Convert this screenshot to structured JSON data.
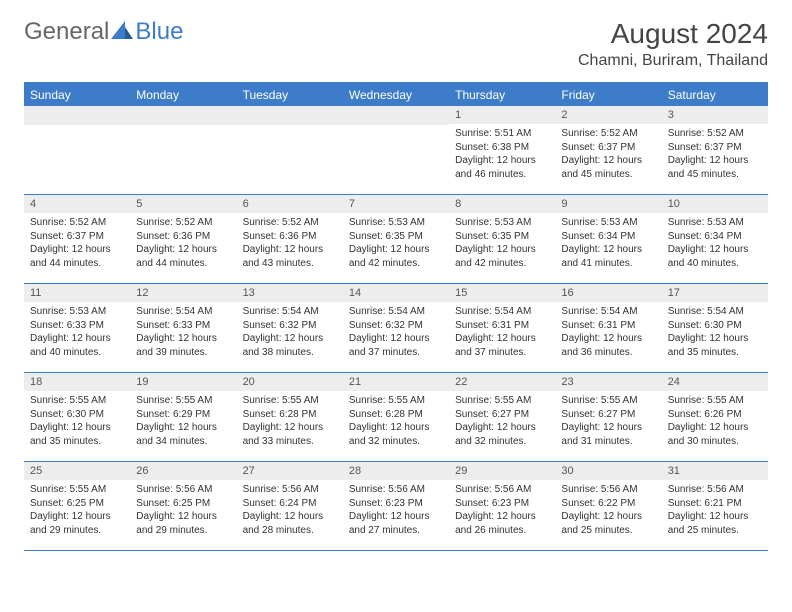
{
  "logo": {
    "part1": "General",
    "part2": "Blue"
  },
  "title": "August 2024",
  "location": "Chamni, Buriram, Thailand",
  "colors": {
    "header_bg": "#3d7cc9",
    "header_text": "#ffffff",
    "daynum_bg": "#ededed",
    "border": "#3d7cc9",
    "text": "#333333",
    "logo_gray": "#666666",
    "logo_blue": "#3d7cc9"
  },
  "day_names": [
    "Sunday",
    "Monday",
    "Tuesday",
    "Wednesday",
    "Thursday",
    "Friday",
    "Saturday"
  ],
  "weeks": [
    [
      {
        "n": "",
        "sr": "",
        "ss": "",
        "dl": ""
      },
      {
        "n": "",
        "sr": "",
        "ss": "",
        "dl": ""
      },
      {
        "n": "",
        "sr": "",
        "ss": "",
        "dl": ""
      },
      {
        "n": "",
        "sr": "",
        "ss": "",
        "dl": ""
      },
      {
        "n": "1",
        "sr": "Sunrise: 5:51 AM",
        "ss": "Sunset: 6:38 PM",
        "dl": "Daylight: 12 hours and 46 minutes."
      },
      {
        "n": "2",
        "sr": "Sunrise: 5:52 AM",
        "ss": "Sunset: 6:37 PM",
        "dl": "Daylight: 12 hours and 45 minutes."
      },
      {
        "n": "3",
        "sr": "Sunrise: 5:52 AM",
        "ss": "Sunset: 6:37 PM",
        "dl": "Daylight: 12 hours and 45 minutes."
      }
    ],
    [
      {
        "n": "4",
        "sr": "Sunrise: 5:52 AM",
        "ss": "Sunset: 6:37 PM",
        "dl": "Daylight: 12 hours and 44 minutes."
      },
      {
        "n": "5",
        "sr": "Sunrise: 5:52 AM",
        "ss": "Sunset: 6:36 PM",
        "dl": "Daylight: 12 hours and 44 minutes."
      },
      {
        "n": "6",
        "sr": "Sunrise: 5:52 AM",
        "ss": "Sunset: 6:36 PM",
        "dl": "Daylight: 12 hours and 43 minutes."
      },
      {
        "n": "7",
        "sr": "Sunrise: 5:53 AM",
        "ss": "Sunset: 6:35 PM",
        "dl": "Daylight: 12 hours and 42 minutes."
      },
      {
        "n": "8",
        "sr": "Sunrise: 5:53 AM",
        "ss": "Sunset: 6:35 PM",
        "dl": "Daylight: 12 hours and 42 minutes."
      },
      {
        "n": "9",
        "sr": "Sunrise: 5:53 AM",
        "ss": "Sunset: 6:34 PM",
        "dl": "Daylight: 12 hours and 41 minutes."
      },
      {
        "n": "10",
        "sr": "Sunrise: 5:53 AM",
        "ss": "Sunset: 6:34 PM",
        "dl": "Daylight: 12 hours and 40 minutes."
      }
    ],
    [
      {
        "n": "11",
        "sr": "Sunrise: 5:53 AM",
        "ss": "Sunset: 6:33 PM",
        "dl": "Daylight: 12 hours and 40 minutes."
      },
      {
        "n": "12",
        "sr": "Sunrise: 5:54 AM",
        "ss": "Sunset: 6:33 PM",
        "dl": "Daylight: 12 hours and 39 minutes."
      },
      {
        "n": "13",
        "sr": "Sunrise: 5:54 AM",
        "ss": "Sunset: 6:32 PM",
        "dl": "Daylight: 12 hours and 38 minutes."
      },
      {
        "n": "14",
        "sr": "Sunrise: 5:54 AM",
        "ss": "Sunset: 6:32 PM",
        "dl": "Daylight: 12 hours and 37 minutes."
      },
      {
        "n": "15",
        "sr": "Sunrise: 5:54 AM",
        "ss": "Sunset: 6:31 PM",
        "dl": "Daylight: 12 hours and 37 minutes."
      },
      {
        "n": "16",
        "sr": "Sunrise: 5:54 AM",
        "ss": "Sunset: 6:31 PM",
        "dl": "Daylight: 12 hours and 36 minutes."
      },
      {
        "n": "17",
        "sr": "Sunrise: 5:54 AM",
        "ss": "Sunset: 6:30 PM",
        "dl": "Daylight: 12 hours and 35 minutes."
      }
    ],
    [
      {
        "n": "18",
        "sr": "Sunrise: 5:55 AM",
        "ss": "Sunset: 6:30 PM",
        "dl": "Daylight: 12 hours and 35 minutes."
      },
      {
        "n": "19",
        "sr": "Sunrise: 5:55 AM",
        "ss": "Sunset: 6:29 PM",
        "dl": "Daylight: 12 hours and 34 minutes."
      },
      {
        "n": "20",
        "sr": "Sunrise: 5:55 AM",
        "ss": "Sunset: 6:28 PM",
        "dl": "Daylight: 12 hours and 33 minutes."
      },
      {
        "n": "21",
        "sr": "Sunrise: 5:55 AM",
        "ss": "Sunset: 6:28 PM",
        "dl": "Daylight: 12 hours and 32 minutes."
      },
      {
        "n": "22",
        "sr": "Sunrise: 5:55 AM",
        "ss": "Sunset: 6:27 PM",
        "dl": "Daylight: 12 hours and 32 minutes."
      },
      {
        "n": "23",
        "sr": "Sunrise: 5:55 AM",
        "ss": "Sunset: 6:27 PM",
        "dl": "Daylight: 12 hours and 31 minutes."
      },
      {
        "n": "24",
        "sr": "Sunrise: 5:55 AM",
        "ss": "Sunset: 6:26 PM",
        "dl": "Daylight: 12 hours and 30 minutes."
      }
    ],
    [
      {
        "n": "25",
        "sr": "Sunrise: 5:55 AM",
        "ss": "Sunset: 6:25 PM",
        "dl": "Daylight: 12 hours and 29 minutes."
      },
      {
        "n": "26",
        "sr": "Sunrise: 5:56 AM",
        "ss": "Sunset: 6:25 PM",
        "dl": "Daylight: 12 hours and 29 minutes."
      },
      {
        "n": "27",
        "sr": "Sunrise: 5:56 AM",
        "ss": "Sunset: 6:24 PM",
        "dl": "Daylight: 12 hours and 28 minutes."
      },
      {
        "n": "28",
        "sr": "Sunrise: 5:56 AM",
        "ss": "Sunset: 6:23 PM",
        "dl": "Daylight: 12 hours and 27 minutes."
      },
      {
        "n": "29",
        "sr": "Sunrise: 5:56 AM",
        "ss": "Sunset: 6:23 PM",
        "dl": "Daylight: 12 hours and 26 minutes."
      },
      {
        "n": "30",
        "sr": "Sunrise: 5:56 AM",
        "ss": "Sunset: 6:22 PM",
        "dl": "Daylight: 12 hours and 25 minutes."
      },
      {
        "n": "31",
        "sr": "Sunrise: 5:56 AM",
        "ss": "Sunset: 6:21 PM",
        "dl": "Daylight: 12 hours and 25 minutes."
      }
    ]
  ]
}
